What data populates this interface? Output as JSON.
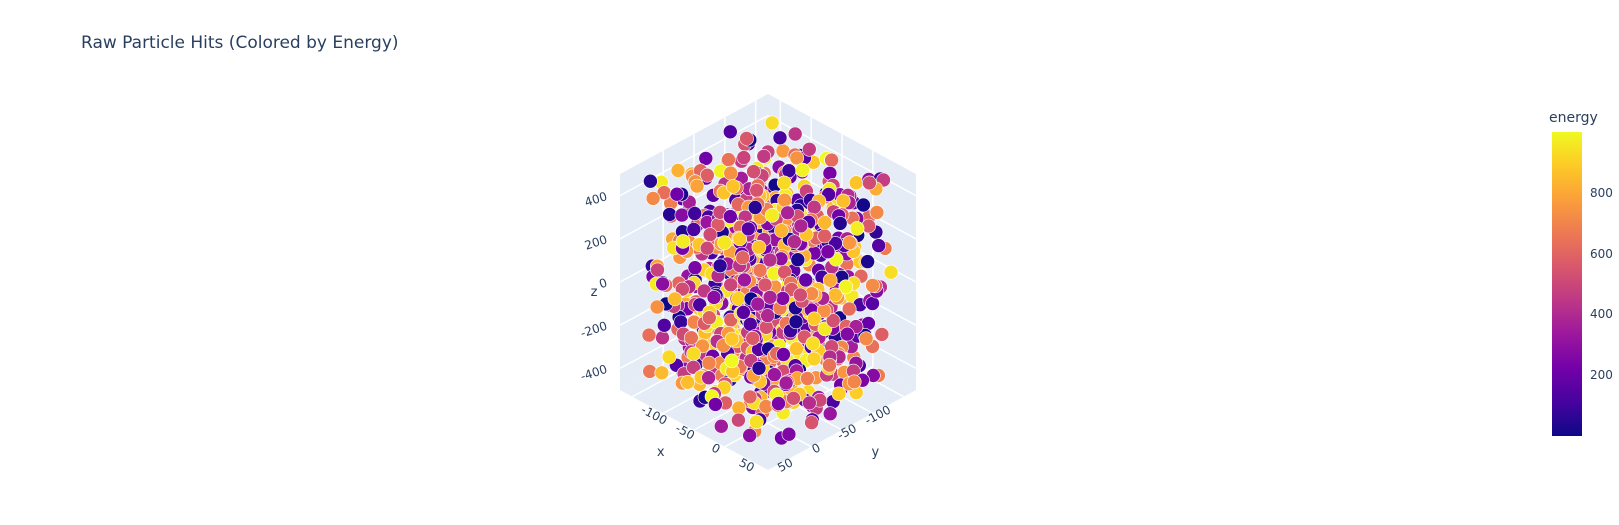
{
  "title": "Raw Particle Hits (Colored by Energy)",
  "chart_data": {
    "type": "scatter3d",
    "title": "Raw Particle Hits (Colored by Energy)",
    "axes": {
      "x": {
        "label": "x",
        "ticks": [
          -100,
          -50,
          0,
          50
        ],
        "range": [
          -120,
          120
        ]
      },
      "y": {
        "label": "y",
        "ticks": [
          -100,
          -50,
          0,
          50
        ],
        "range": [
          -120,
          120
        ]
      },
      "z": {
        "label": "z",
        "ticks": [
          -400,
          -200,
          0,
          200,
          400
        ],
        "range": [
          -500,
          500
        ]
      }
    },
    "color_axis": {
      "title": "energy",
      "ticks": [
        200,
        400,
        600,
        800
      ],
      "range": [
        0,
        1000
      ],
      "colorscale": [
        "#0d0887",
        "#46039f",
        "#7201a8",
        "#9c179e",
        "#bd3786",
        "#d8576b",
        "#ed7953",
        "#fb9f3a",
        "#fdca26",
        "#f0f921"
      ]
    },
    "n_points": 900,
    "point_distribution": "uniform random hits, x and y in [-100, 100], z in [-500, 500], energy in [0, 1000]"
  }
}
